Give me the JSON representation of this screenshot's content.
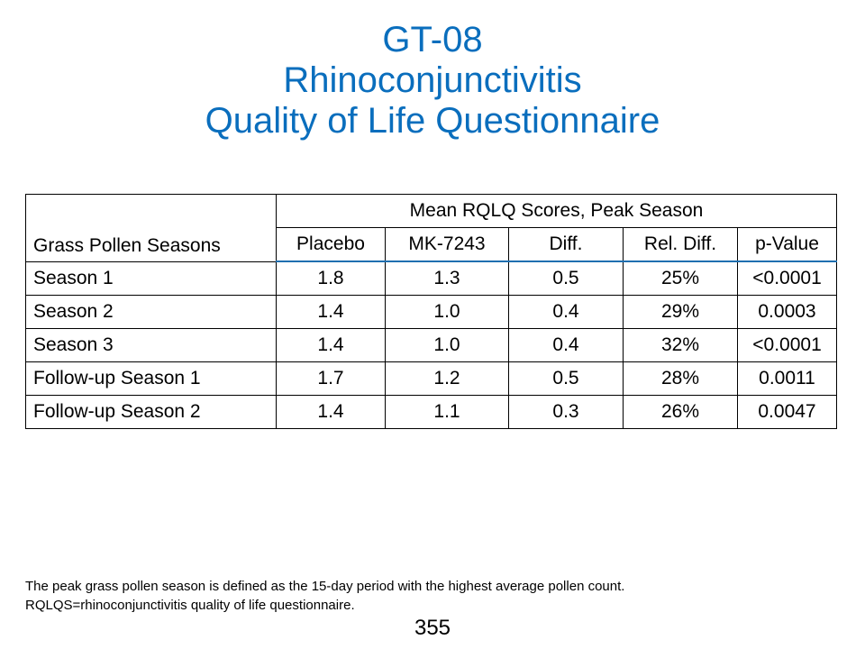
{
  "title": {
    "line1": "GT-08",
    "line2": "Rhinoconjunctivitis",
    "line3": "Quality of Life Questionnaire"
  },
  "table": {
    "row_header": "Grass Pollen Seasons",
    "group_header": "Mean RQLQ Scores, Peak Season",
    "columns": [
      "Placebo",
      "MK-7243",
      "Diff.",
      "Rel. Diff.",
      "p-Value"
    ],
    "rows": [
      {
        "label": "Season 1",
        "values": [
          "1.8",
          "1.3",
          "0.5",
          "25%",
          "<0.0001"
        ]
      },
      {
        "label": "Season 2",
        "values": [
          "1.4",
          "1.0",
          "0.4",
          "29%",
          "0.0003"
        ]
      },
      {
        "label": "Season 3",
        "values": [
          "1.4",
          "1.0",
          "0.4",
          "32%",
          "<0.0001"
        ]
      },
      {
        "label": "Follow-up Season 1",
        "values": [
          "1.7",
          "1.2",
          "0.5",
          "28%",
          "0.0011"
        ]
      },
      {
        "label": "Follow-up Season 2",
        "values": [
          "1.4",
          "1.1",
          "0.3",
          "26%",
          "0.0047"
        ]
      }
    ]
  },
  "footnote": {
    "line1": "The peak grass pollen season is defined as the 15-day period with the highest average pollen count.",
    "line2": "RQLQS=rhinoconjunctivitis quality of life questionnaire."
  },
  "page_number": "355",
  "colors": {
    "title": "#0a6ebd",
    "header_rule": "#1f6fb0"
  }
}
